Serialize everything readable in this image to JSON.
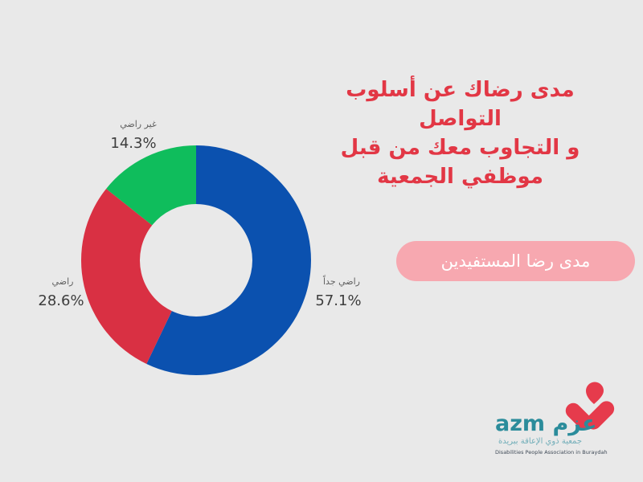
{
  "background_color": "#e9e9e9",
  "title": {
    "lines": [
      "مدى رضاك عن أسلوب التواصل",
      "و التجاوب معك من قبل",
      "موظفي الجمعية"
    ],
    "color": "#e23745"
  },
  "badge": {
    "label": "مدى رضا المستفيدين",
    "bg_color": "#f7a8b0",
    "text_color": "#ffffff"
  },
  "chart_data": {
    "type": "pie",
    "style": "donut",
    "title": "مدى رضاك عن أسلوب التواصل و التجاوب معك من قبل موظفي الجمعية",
    "categories": [
      "راضي جداً",
      "راضي",
      "غير راضي"
    ],
    "values": [
      57.1,
      28.6,
      14.3
    ],
    "value_labels": [
      "57.1%",
      "28.6%",
      "14.3%"
    ],
    "colors": [
      "#0b51af",
      "#d93043",
      "#0fbd5c"
    ],
    "start_angle_deg": 0,
    "direction": "clockwise",
    "inner_radius_ratio": 0.49,
    "legend_position": "none",
    "grid": false
  },
  "logo": {
    "brand": "azm عزم",
    "brand_color": "#2b8c9b",
    "heart_color": "#e63b4c",
    "tagline_ar": "جمعية ذوي الإعاقة ببريدة",
    "tagline_en": "Disabilities People Association in Buraydah"
  }
}
